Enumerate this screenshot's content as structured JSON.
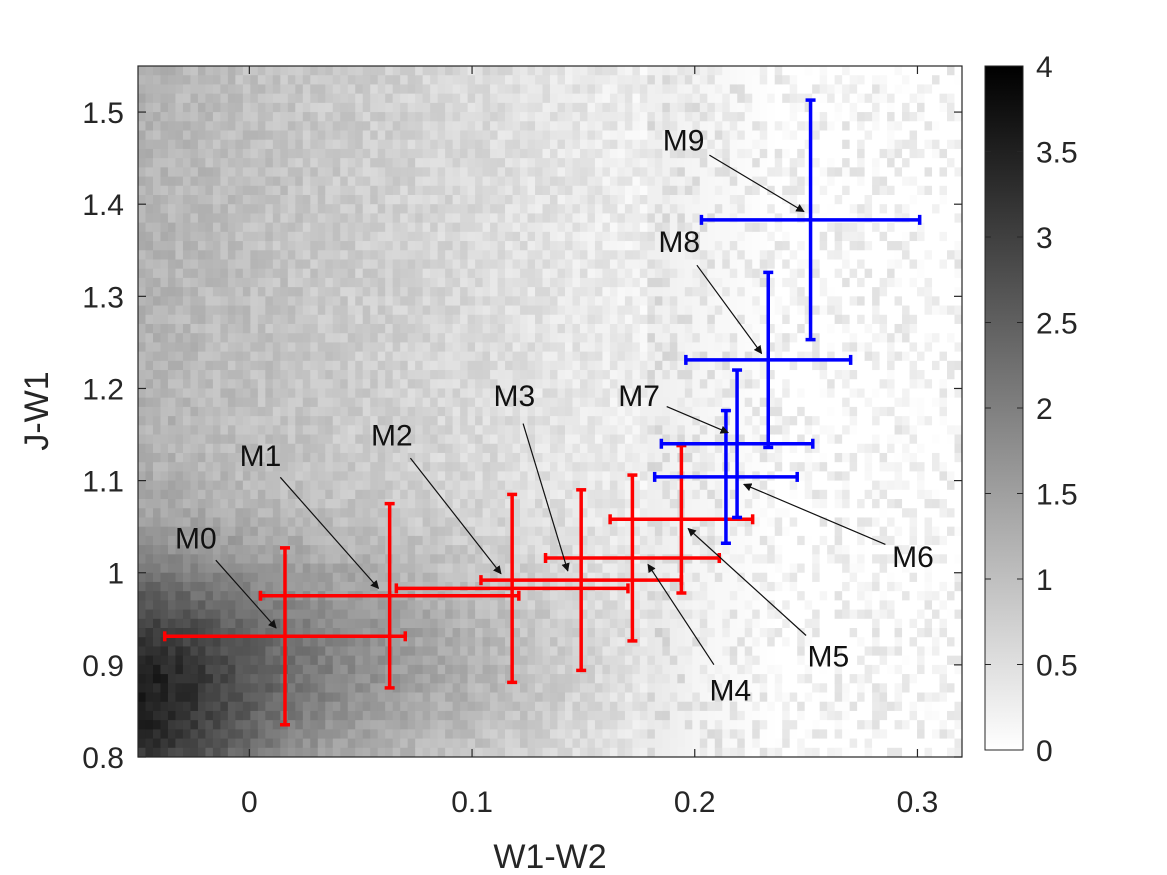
{
  "chart_data": {
    "type": "scatter",
    "title": "",
    "xlabel": "W1-W2",
    "ylabel": "J-W1",
    "xlim": [
      -0.05,
      0.32
    ],
    "ylim": [
      0.8,
      1.55
    ],
    "xticks": [
      "0",
      "0.1",
      "0.2",
      "0.3"
    ],
    "xtick_values": [
      0,
      0.1,
      0.2,
      0.3
    ],
    "yticks": [
      "0.8",
      "0.9",
      "1",
      "1.1",
      "1.2",
      "1.3",
      "1.4",
      "1.5"
    ],
    "ytick_values": [
      0.8,
      0.9,
      1.0,
      1.1,
      1.2,
      1.3,
      1.4,
      1.5
    ],
    "grid": false,
    "background": {
      "type": "heatmap",
      "colormap": "gray-reversed",
      "description_values": "density map, darkest near lower-left (W1-W2 ≈ -0.05, J-W1 ≈ 0.8), fading to white above W1-W2 ≈ 0.2"
    },
    "colorbar": {
      "range": [
        0,
        4
      ],
      "ticks": [
        "0",
        "0.5",
        "1",
        "1.5",
        "2",
        "2.5",
        "3",
        "3.5",
        "4"
      ],
      "tick_values": [
        0,
        0.5,
        1,
        1.5,
        2,
        2.5,
        3,
        3.5,
        4
      ]
    },
    "series": [
      {
        "color": "#ff0000",
        "points": [
          {
            "label": "M0",
            "x": 0.016,
            "y": 0.931,
            "xerr": 0.054,
            "yerr": 0.096
          },
          {
            "label": "M1",
            "x": 0.063,
            "y": 0.975,
            "xerr": 0.058,
            "yerr": 0.1
          },
          {
            "label": "M2",
            "x": 0.118,
            "y": 0.983,
            "xerr": 0.052,
            "yerr": 0.102
          },
          {
            "label": "M3",
            "x": 0.149,
            "y": 0.992,
            "xerr": 0.045,
            "yerr": 0.098
          },
          {
            "label": "M4",
            "x": 0.172,
            "y": 1.016,
            "xerr": 0.039,
            "yerr": 0.09
          },
          {
            "label": "M5",
            "x": 0.194,
            "y": 1.058,
            "xerr": 0.032,
            "yerr": 0.08
          }
        ]
      },
      {
        "color": "#0000ff",
        "points": [
          {
            "label": "M6",
            "x": 0.214,
            "y": 1.104,
            "xerr": 0.032,
            "yerr": 0.072
          },
          {
            "label": "M7",
            "x": 0.219,
            "y": 1.14,
            "xerr": 0.034,
            "yerr": 0.08
          },
          {
            "label": "M8",
            "x": 0.233,
            "y": 1.231,
            "xerr": 0.037,
            "yerr": 0.095
          },
          {
            "label": "M9",
            "x": 0.252,
            "y": 1.383,
            "xerr": 0.049,
            "yerr": 0.13
          }
        ]
      }
    ],
    "annotations": [
      {
        "text": "M0",
        "text_x": -0.024,
        "text_y": 1.038,
        "arrow_x": 0.012,
        "arrow_y": 0.94
      },
      {
        "text": "M1",
        "text_x": 0.005,
        "text_y": 1.128,
        "arrow_x": 0.058,
        "arrow_y": 0.983
      },
      {
        "text": "M2",
        "text_x": 0.064,
        "text_y": 1.15,
        "arrow_x": 0.113,
        "arrow_y": 0.999
      },
      {
        "text": "M3",
        "text_x": 0.119,
        "text_y": 1.193,
        "arrow_x": 0.143,
        "arrow_y": 1.002
      },
      {
        "text": "M4",
        "text_x": 0.216,
        "text_y": 0.873,
        "arrow_x": 0.179,
        "arrow_y": 1.009
      },
      {
        "text": "M5",
        "text_x": 0.26,
        "text_y": 0.91,
        "arrow_x": 0.197,
        "arrow_y": 1.048
      },
      {
        "text": "M6",
        "text_x": 0.298,
        "text_y": 1.018,
        "arrow_x": 0.222,
        "arrow_y": 1.096
      },
      {
        "text": "M7",
        "text_x": 0.175,
        "text_y": 1.193,
        "arrow_x": 0.215,
        "arrow_y": 1.152
      },
      {
        "text": "M8",
        "text_x": 0.193,
        "text_y": 1.36,
        "arrow_x": 0.23,
        "arrow_y": 1.238
      },
      {
        "text": "M9",
        "text_x": 0.195,
        "text_y": 1.47,
        "arrow_x": 0.249,
        "arrow_y": 1.392
      }
    ]
  }
}
